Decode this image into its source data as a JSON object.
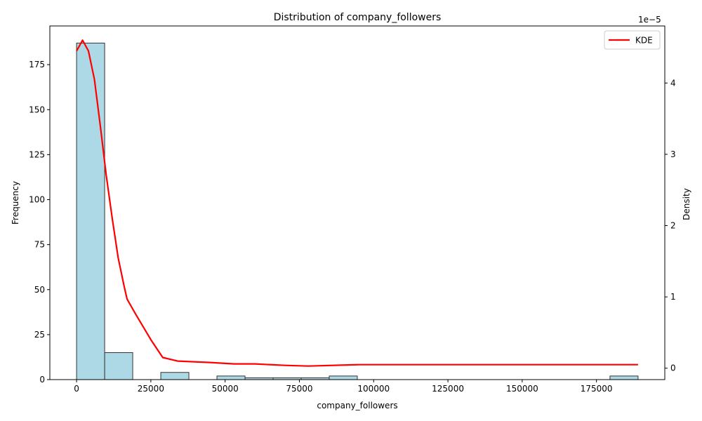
{
  "chart_data": {
    "type": "bar",
    "title": "Distribution of company_followers",
    "xlabel": "company_followers",
    "ylabel": "Frequency",
    "y2label": "Density",
    "y2_offset_text": "1e−5",
    "xlim": [
      -9000,
      198000
    ],
    "ylim": [
      0,
      196.5
    ],
    "y2lim": [
      -0.16,
      4.8
    ],
    "x_ticks": [
      0,
      25000,
      50000,
      75000,
      100000,
      125000,
      150000,
      175000
    ],
    "x_tick_labels": [
      "0",
      "25000",
      "50000",
      "75000",
      "100000",
      "125000",
      "150000",
      "175000"
    ],
    "y_ticks": [
      0,
      25,
      50,
      75,
      100,
      125,
      150,
      175
    ],
    "y_tick_labels": [
      "0",
      "25",
      "50",
      "75",
      "100",
      "125",
      "150",
      "175"
    ],
    "y2_ticks": [
      0,
      1,
      2,
      3,
      4
    ],
    "y2_tick_labels": [
      "0",
      "1",
      "2",
      "3",
      "4"
    ],
    "bin_edges": [
      0,
      9450,
      18900,
      28350,
      37800,
      47250,
      56700,
      66150,
      75600,
      85050,
      94500,
      103950,
      113400,
      122850,
      132300,
      141750,
      151200,
      160650,
      170100,
      179550,
      189000
    ],
    "counts": [
      187,
      15,
      0,
      4,
      0,
      2,
      1,
      1,
      1,
      2,
      0,
      0,
      0,
      0,
      0,
      0,
      0,
      0,
      0,
      2
    ],
    "bar_color": "#ADD8E6",
    "bar_edge_color": "#333333",
    "series": [
      {
        "name": "KDE",
        "color": "#FF0000",
        "x": [
          0,
          2000,
          4000,
          6000,
          8000,
          10000,
          12000,
          14000,
          16000,
          17000,
          20000,
          25000,
          29000,
          34000,
          45000,
          53000,
          60000,
          70000,
          78000,
          95000,
          189000
        ],
        "y": [
          4.45,
          4.6,
          4.45,
          4.05,
          3.4,
          2.7,
          2.1,
          1.55,
          1.15,
          0.97,
          0.75,
          0.4,
          0.15,
          0.1,
          0.08,
          0.06,
          0.06,
          0.04,
          0.03,
          0.05,
          0.05
        ]
      }
    ],
    "legend": {
      "position": "top-right",
      "entries": [
        "KDE"
      ]
    }
  }
}
